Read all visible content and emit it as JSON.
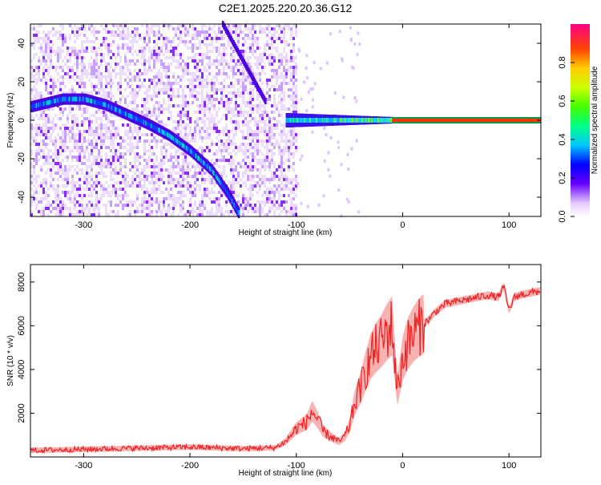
{
  "figure_title": "C2E1.2025.220.20.36.G12",
  "chart_data": [
    {
      "type": "heatmap",
      "xlabel": "Height of straight line (km)",
      "ylabel": "Frequency (Hz)",
      "xlim": [
        -350,
        130
      ],
      "ylim": [
        -50,
        50
      ],
      "xticks": [
        -300,
        -200,
        -100,
        0,
        100
      ],
      "yticks": [
        -40,
        -20,
        0,
        20,
        40
      ],
      "colorbar": {
        "label": "Normalized spectral amplitude",
        "range": [
          0,
          1
        ],
        "ticks": [
          "0.0",
          "0.2",
          "0.4",
          "0.6",
          "0.8"
        ],
        "tick_values": [
          0,
          0.2,
          0.4,
          0.6,
          0.8
        ]
      },
      "main_ridge": [
        [
          -350,
          7
        ],
        [
          -320,
          11
        ],
        [
          -300,
          11
        ],
        [
          -280,
          8
        ],
        [
          -260,
          3
        ],
        [
          -240,
          -2
        ],
        [
          -220,
          -8
        ],
        [
          -200,
          -16
        ],
        [
          -180,
          -26
        ],
        [
          -165,
          -38
        ],
        [
          -155,
          -48
        ]
      ],
      "secondary_ridge": [
        [
          -170,
          50
        ],
        [
          -160,
          40
        ],
        [
          -150,
          30
        ],
        [
          -140,
          20
        ],
        [
          -130,
          10
        ]
      ],
      "carrier_segment": {
        "x_start": -110,
        "x_end": 130,
        "y": 0
      },
      "noise_region_x": [
        -350,
        -100
      ]
    },
    {
      "type": "line",
      "xlabel": "Height of straight line (km)",
      "ylabel": "SNR (10 * v/v)",
      "xlim": [
        -350,
        130
      ],
      "ylim": [
        0,
        8800
      ],
      "xticks": [
        -300,
        -200,
        -100,
        0,
        100
      ],
      "yticks": [
        2000,
        4000,
        6000,
        8000
      ],
      "series": [
        {
          "color": "#ee2222",
          "x": [
            -350,
            -300,
            -250,
            -200,
            -150,
            -120,
            -110,
            -100,
            -90,
            -85,
            -80,
            -75,
            -70,
            -60,
            -55,
            -50,
            -45,
            -40,
            -35,
            -30,
            -25,
            -20,
            -15,
            -10,
            -5,
            0,
            5,
            10,
            15,
            20,
            25,
            30,
            40,
            50,
            60,
            70,
            80,
            90,
            95,
            100,
            105,
            110,
            120,
            130
          ],
          "y": [
            300,
            350,
            400,
            450,
            380,
            420,
            700,
            1300,
            1600,
            2100,
            1700,
            1200,
            1000,
            700,
            900,
            1400,
            2500,
            3100,
            3900,
            4600,
            5000,
            5300,
            5700,
            6000,
            3000,
            4500,
            5200,
            5600,
            5900,
            6100,
            6300,
            6600,
            7000,
            7100,
            7200,
            7300,
            7400,
            7300,
            7800,
            6700,
            7300,
            7400,
            7500,
            7600
          ]
        }
      ]
    }
  ]
}
